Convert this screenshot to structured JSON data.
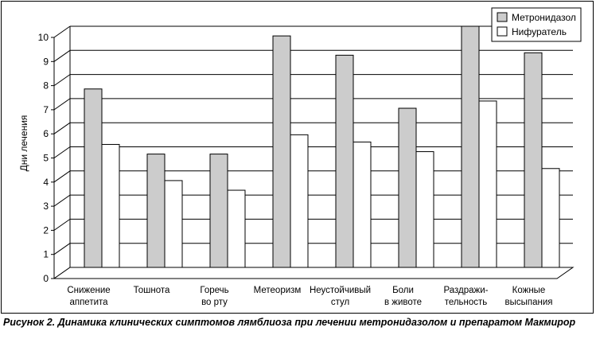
{
  "chart_data": {
    "type": "bar",
    "categories": [
      [
        "Снижение",
        "аппетита"
      ],
      [
        "Тошнота"
      ],
      [
        "Горечь",
        "во рту"
      ],
      [
        "Метеоризм"
      ],
      [
        "Неустойчивый",
        "стул"
      ],
      [
        "Боли",
        "в животе"
      ],
      [
        "Раздражи-",
        "тельность"
      ],
      [
        "Кожные",
        "высыпания"
      ]
    ],
    "series": [
      {
        "name": "Метронидазол",
        "color": "#cccccc",
        "values": [
          7.4,
          4.7,
          4.7,
          9.6,
          8.8,
          6.6,
          10.0,
          8.9
        ]
      },
      {
        "name": "Нифуратель",
        "color": "#ffffff",
        "values": [
          5.1,
          3.6,
          3.2,
          5.5,
          5.2,
          4.8,
          6.9,
          4.1
        ]
      }
    ],
    "ylabel": "Дни лечения",
    "ylim": [
      0,
      10
    ],
    "yticks": [
      "0",
      "1",
      "2",
      "3",
      "4",
      "5",
      "6",
      "7",
      "8",
      "9",
      "10"
    ],
    "grid": true,
    "legend": "top-right"
  },
  "caption": "Рисунок 2. Динамика клинических симптомов лямблиоза при лечении метронидазолом и препаратом Макмирор"
}
